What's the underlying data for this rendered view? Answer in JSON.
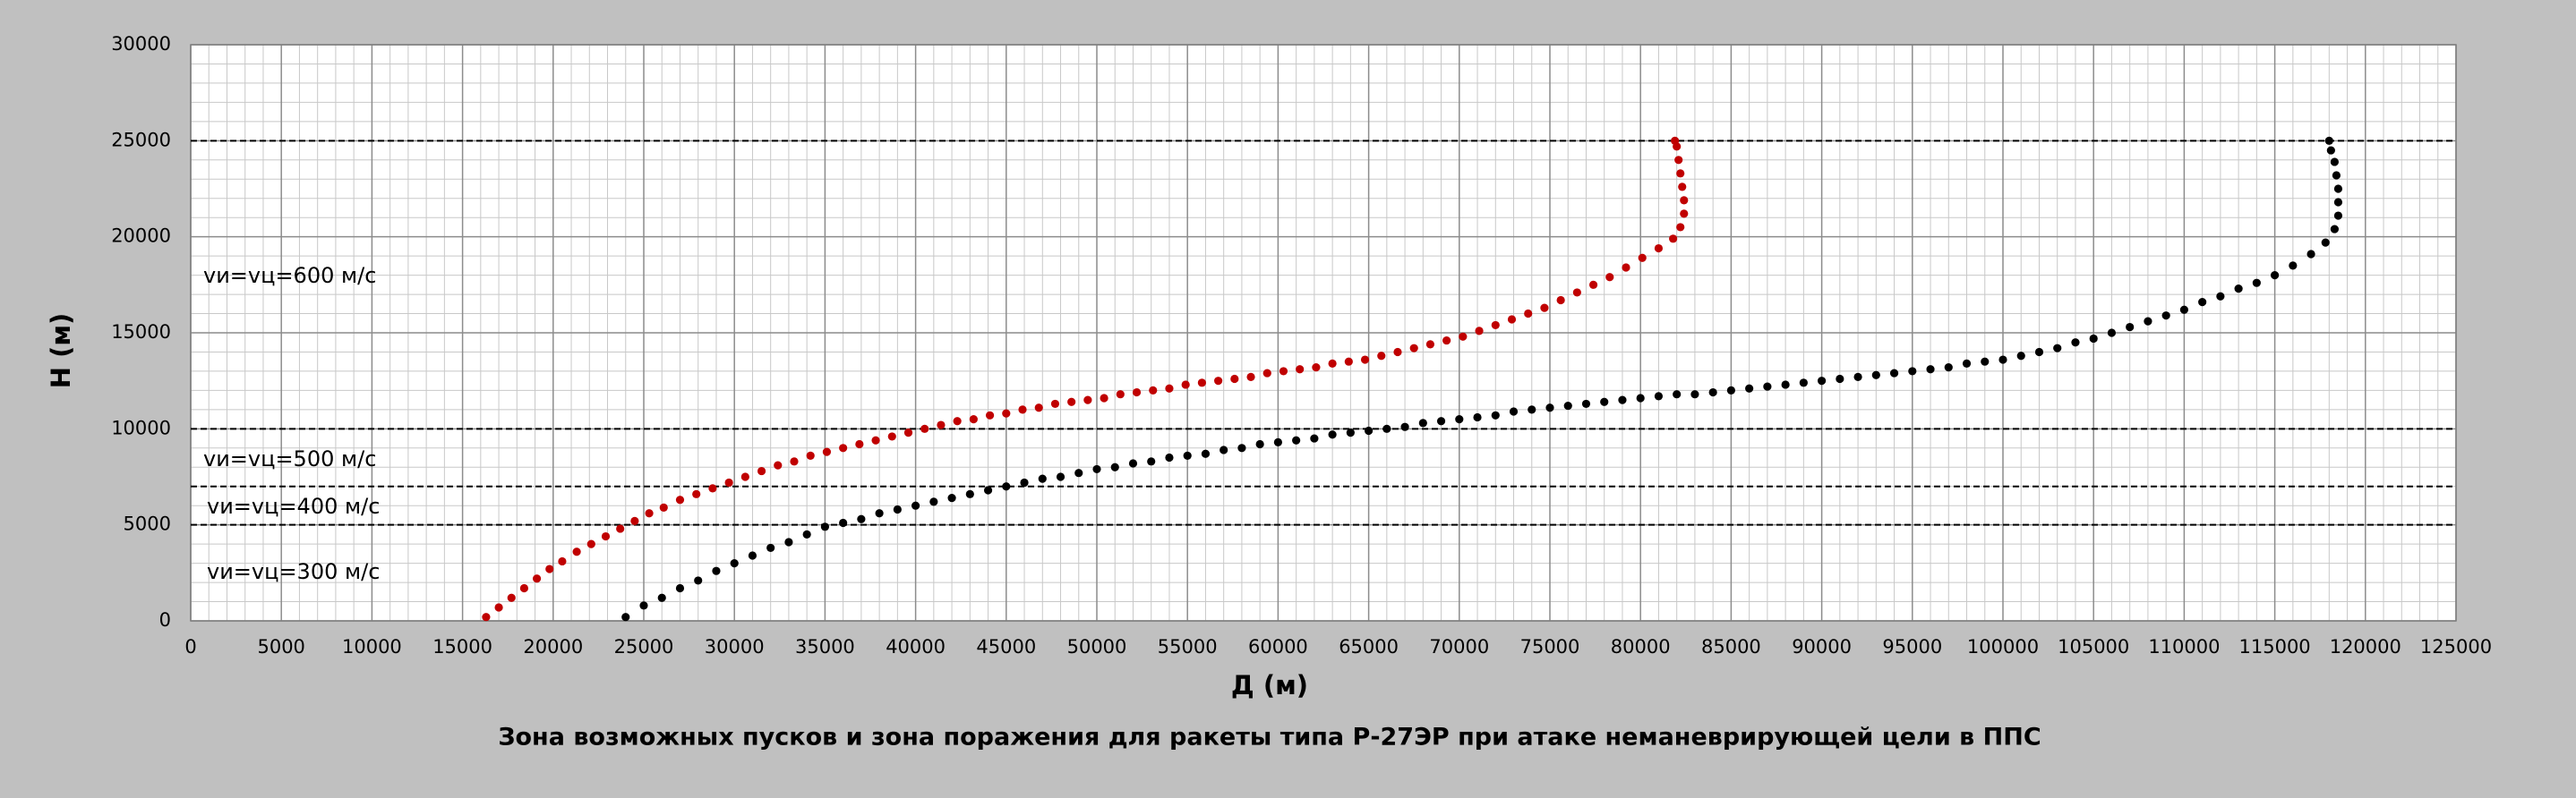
{
  "chart_data": {
    "type": "scatter",
    "title": "Зона возможных пусков и зона поражения для ракеты типа Р-27ЭР при атаке неманеврирующей цели в ППС",
    "x_label": "Д (м)",
    "y_label": "H (м)",
    "xlim": [
      0,
      125000
    ],
    "ylim": [
      0,
      30000
    ],
    "xticks": [
      0,
      5000,
      10000,
      15000,
      20000,
      25000,
      30000,
      35000,
      40000,
      45000,
      50000,
      55000,
      60000,
      65000,
      70000,
      75000,
      80000,
      85000,
      90000,
      95000,
      100000,
      105000,
      110000,
      115000,
      120000,
      125000
    ],
    "yticks": [
      0,
      5000,
      10000,
      15000,
      20000,
      25000,
      30000
    ],
    "grid": true,
    "reference_lines": [
      25000,
      10000,
      7000,
      5000
    ],
    "annotations": [
      "vи=vц=600 м/с",
      "vи=vц=500 м/с",
      "vи=vц=400 м/с",
      "vи=vц=300 м/с"
    ],
    "series": [
      {
        "color": "#c00000",
        "x": [
          16300,
          17000,
          17700,
          18400,
          19100,
          19800,
          20500,
          21300,
          22100,
          22900,
          23700,
          24500,
          25300,
          26100,
          27000,
          27900,
          28800,
          29700,
          30600,
          31500,
          32400,
          33300,
          34200,
          35100,
          36000,
          36900,
          37800,
          38700,
          39600,
          40500,
          41400,
          42300,
          43200,
          44100,
          45000,
          45900,
          46800,
          47700,
          48600,
          49500,
          50400,
          51300,
          52200,
          53100,
          54000,
          54900,
          55800,
          56700,
          57600,
          58500,
          59400,
          60300,
          61200,
          62100,
          63000,
          63900,
          64800,
          65700,
          66600,
          67500,
          68400,
          69300,
          70200,
          71100,
          72000,
          72900,
          73800,
          74700,
          75600,
          76500,
          77400,
          78300,
          79200,
          80100,
          81000,
          81800,
          82200,
          82400,
          82400,
          82300,
          82200,
          82100,
          82000,
          81900
        ],
        "values": [
          200,
          700,
          1200,
          1700,
          2200,
          2700,
          3100,
          3600,
          4000,
          4400,
          4800,
          5200,
          5600,
          5900,
          6300,
          6600,
          6900,
          7200,
          7500,
          7800,
          8100,
          8300,
          8600,
          8800,
          9000,
          9200,
          9400,
          9600,
          9800,
          10000,
          10200,
          10400,
          10500,
          10700,
          10800,
          11000,
          11100,
          11300,
          11400,
          11500,
          11600,
          11800,
          11900,
          12000,
          12100,
          12300,
          12400,
          12500,
          12600,
          12700,
          12900,
          13000,
          13100,
          13200,
          13400,
          13500,
          13600,
          13800,
          14000,
          14200,
          14400,
          14600,
          14800,
          15100,
          15400,
          15700,
          16000,
          16300,
          16700,
          17100,
          17500,
          17900,
          18400,
          18900,
          19400,
          19900,
          20500,
          21200,
          21900,
          22600,
          23300,
          24000,
          24700,
          25000
        ]
      },
      {
        "color": "#000000",
        "x": [
          24000,
          25000,
          26000,
          27000,
          28000,
          29000,
          30000,
          31000,
          32000,
          33000,
          34000,
          35000,
          36000,
          37000,
          38000,
          39000,
          40000,
          41000,
          42000,
          43000,
          44000,
          45000,
          46000,
          47000,
          48000,
          49000,
          50000,
          51000,
          52000,
          53000,
          54000,
          55000,
          56000,
          57000,
          58000,
          59000,
          60000,
          61000,
          62000,
          63000,
          64000,
          65000,
          66000,
          67000,
          68000,
          69000,
          70000,
          71000,
          72000,
          73000,
          74000,
          75000,
          76000,
          77000,
          78000,
          79000,
          80000,
          81000,
          82000,
          83000,
          84000,
          85000,
          86000,
          87000,
          88000,
          89000,
          90000,
          91000,
          92000,
          93000,
          94000,
          95000,
          96000,
          97000,
          98000,
          99000,
          100000,
          101000,
          102000,
          103000,
          104000,
          105000,
          106000,
          107000,
          108000,
          109000,
          110000,
          111000,
          112000,
          113000,
          114000,
          115000,
          116000,
          117000,
          117800,
          118300,
          118500,
          118500,
          118500,
          118400,
          118300,
          118100,
          118000
        ],
        "values": [
          200,
          800,
          1200,
          1700,
          2100,
          2600,
          3000,
          3400,
          3800,
          4100,
          4500,
          4900,
          5100,
          5300,
          5600,
          5800,
          6000,
          6200,
          6400,
          6600,
          6800,
          7000,
          7200,
          7400,
          7500,
          7700,
          7900,
          8000,
          8200,
          8300,
          8500,
          8600,
          8700,
          8900,
          9000,
          9200,
          9300,
          9400,
          9500,
          9700,
          9800,
          9900,
          10000,
          10100,
          10300,
          10400,
          10500,
          10600,
          10700,
          10900,
          11000,
          11100,
          11200,
          11300,
          11400,
          11500,
          11600,
          11700,
          11800,
          11800,
          11900,
          12000,
          12100,
          12200,
          12300,
          12400,
          12500,
          12600,
          12700,
          12800,
          12900,
          13000,
          13100,
          13200,
          13400,
          13500,
          13600,
          13800,
          14000,
          14200,
          14500,
          14700,
          15000,
          15300,
          15600,
          15900,
          16200,
          16600,
          16900,
          17300,
          17600,
          18000,
          18500,
          19100,
          19700,
          20400,
          21100,
          21800,
          22500,
          23200,
          23900,
          24500,
          25000
        ]
      }
    ]
  }
}
